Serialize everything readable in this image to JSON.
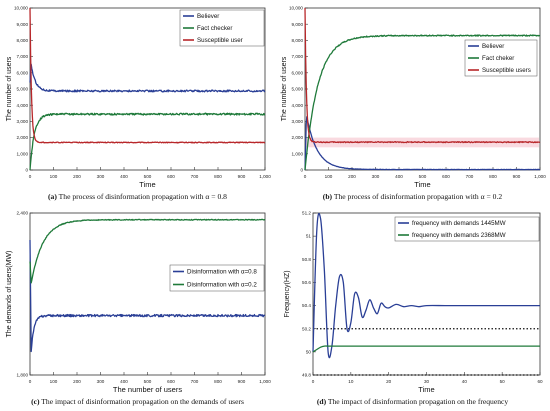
{
  "colors": {
    "blue": "#2a3f96",
    "green": "#1f7a3a",
    "red": "#b8272a",
    "pink": "#f4b6c2",
    "axis": "#333333",
    "dotted": "#111111"
  },
  "chart_data": [
    {
      "id": "a",
      "type": "line",
      "caption_label": "(a)",
      "caption_text": "The process of disinformation propagation with α = 0.8",
      "xlabel": "Time",
      "ylabel": "The number of users",
      "xlim": [
        0,
        1000
      ],
      "ylim": [
        0,
        10000
      ],
      "xticks": [
        0,
        100,
        200,
        300,
        400,
        500,
        600,
        700,
        800,
        900,
        1000
      ],
      "xtick_labels": [
        "0",
        "100",
        "200",
        "300",
        "400",
        "500",
        "600",
        "700",
        "800",
        "900",
        "1,000"
      ],
      "yticks": [
        0,
        1000,
        2000,
        3000,
        4000,
        5000,
        6000,
        7000,
        8000,
        9000,
        10000
      ],
      "ytick_labels": [
        "0",
        "1,000",
        "2,000",
        "3,000",
        "4,000",
        "5,000",
        "6,000",
        "7,000",
        "8,000",
        "9,000",
        "10,000"
      ],
      "legend_position": "top-right",
      "series": [
        {
          "name": "Believer",
          "color": "blue",
          "start": 5400,
          "peak": 6600,
          "peak_x": 4,
          "steady": 4880,
          "tau": 18,
          "noise": 55
        },
        {
          "name": "Fact checker",
          "color": "green",
          "start": 0,
          "steady": 3450,
          "tau": 18,
          "noise": 55
        },
        {
          "name": "Susceptible user",
          "color": "red",
          "start": 10000,
          "steady": 1700,
          "tau": 6,
          "noise": 25
        }
      ]
    },
    {
      "id": "b",
      "type": "line",
      "caption_label": "(b)",
      "caption_text": "The process of disinformation propagation with α = 0.2",
      "xlabel": "Time",
      "ylabel": "The number of users",
      "xlim": [
        0,
        1000
      ],
      "ylim": [
        0,
        10000
      ],
      "xticks": [
        0,
        100,
        200,
        300,
        400,
        500,
        600,
        700,
        800,
        900,
        1000
      ],
      "xtick_labels": [
        "0",
        "100",
        "200",
        "300",
        "400",
        "500",
        "600",
        "700",
        "800",
        "900",
        "1,000"
      ],
      "yticks": [
        0,
        1000,
        2000,
        3000,
        4000,
        5000,
        6000,
        7000,
        8000,
        9000,
        10000
      ],
      "ytick_labels": [
        "0",
        "1,000",
        "2,000",
        "3,000",
        "4,000",
        "5,000",
        "6,000",
        "7,000",
        "8,000",
        "9,000",
        "10,000"
      ],
      "legend_position": "right",
      "series": [
        {
          "name": "Believer",
          "color": "blue",
          "start": 0,
          "peak": 3400,
          "peak_x": 6,
          "steady": 30,
          "tau": 45,
          "noise": 10
        },
        {
          "name": "Fact cheker",
          "color": "green",
          "start": 0,
          "steady": 8300,
          "tau": 55,
          "noise": 35
        },
        {
          "name": "Susceptible users",
          "color": "red",
          "start": 10000,
          "steady": 1720,
          "tau": 6,
          "noise": 30
        }
      ]
    },
    {
      "id": "c",
      "type": "line",
      "caption_label": "(c)",
      "caption_text": "The impact of disinformation propagation on the demands of users",
      "xlabel": "The number of users",
      "ylabel": "The demands of users(MW)",
      "xlim": [
        0,
        1000
      ],
      "ylim": [
        1800,
        2400
      ],
      "xticks": [
        0,
        100,
        200,
        300,
        400,
        500,
        600,
        700,
        800,
        900,
        1000
      ],
      "xtick_labels": [
        "0",
        "100",
        "200",
        "300",
        "400",
        "500",
        "600",
        "700",
        "800",
        "900",
        "1,000"
      ],
      "yticks": [
        1800,
        2400
      ],
      "ytick_labels": [
        "1,800",
        "2,400"
      ],
      "legend_position": "center-right",
      "series": [
        {
          "name": "Disinformation with  α=0.8",
          "color": "blue",
          "start": 2300,
          "dip": 1890,
          "dip_x": 5,
          "steady": 2020,
          "tau": 12,
          "noise": 4
        },
        {
          "name": "Disinformation with  α=0.2",
          "color": "green",
          "start": 2220,
          "dip": 2140,
          "dip_x": 5,
          "steady": 2375,
          "tau": 50,
          "noise": 1.5
        }
      ]
    },
    {
      "id": "d",
      "type": "line",
      "caption_label": "(d)",
      "caption_text": "The impact of disinformation propagation on the frequency",
      "xlabel": "Time",
      "ylabel": "Frequency(HZ)",
      "xlim": [
        0,
        60
      ],
      "ylim": [
        49.8,
        51.2
      ],
      "xticks": [
        0,
        10,
        20,
        30,
        40,
        50,
        60
      ],
      "xtick_labels": [
        "0",
        "10",
        "20",
        "30",
        "40",
        "50",
        "60"
      ],
      "yticks": [
        49.8,
        50,
        50.2,
        50.4,
        50.6,
        50.8,
        51,
        51.2
      ],
      "ytick_labels": [
        "49.8",
        "50",
        "50.2",
        "50.4",
        "50.6",
        "50.8",
        "51",
        "51.2"
      ],
      "legend_position": "top-right",
      "reference_lines": [
        50.2,
        49.8
      ],
      "series": [
        {
          "name": "frequency with demands 1445MW",
          "color": "blue",
          "x": [
            0,
            1,
            2,
            3,
            4,
            5,
            6,
            7,
            8,
            9,
            10,
            11,
            12,
            13,
            14,
            15,
            16,
            17,
            18,
            19,
            20,
            22,
            24,
            26,
            28,
            30,
            35,
            40,
            45,
            50,
            55,
            60
          ],
          "values": [
            50.0,
            51.05,
            51.15,
            50.7,
            50.0,
            50.05,
            50.4,
            50.65,
            50.6,
            50.2,
            50.25,
            50.5,
            50.47,
            50.3,
            50.36,
            50.45,
            50.38,
            50.33,
            50.42,
            50.39,
            50.38,
            50.41,
            50.39,
            50.4,
            50.39,
            50.4,
            50.4,
            50.4,
            50.4,
            50.4,
            50.4,
            50.4
          ]
        },
        {
          "name": "frequency with demands 2368MW",
          "color": "green",
          "x": [
            0,
            1,
            2,
            3,
            4,
            5,
            10,
            20,
            30,
            40,
            50,
            60
          ],
          "values": [
            50.0,
            50.02,
            50.04,
            50.05,
            50.05,
            50.05,
            50.05,
            50.05,
            50.05,
            50.05,
            50.05,
            50.05
          ]
        }
      ]
    }
  ]
}
